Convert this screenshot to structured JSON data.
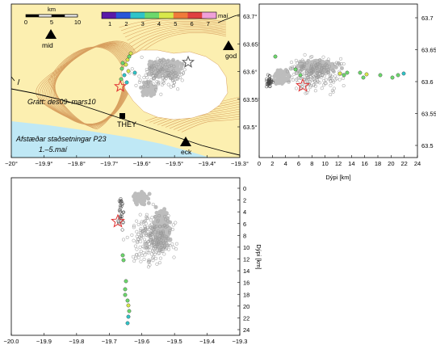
{
  "map": {
    "scale_label": "km",
    "scale_ticks": [
      "0",
      "5",
      "10"
    ],
    "colorbar_ticks": [
      "1",
      "2",
      "3",
      "4",
      "5",
      "6",
      "7"
    ],
    "colorbar_unit": "maí",
    "colorbar_colors": [
      "#5a1aa8",
      "#2856d8",
      "#2fc4c8",
      "#6cd86c",
      "#d8e84a",
      "#f07a3a",
      "#e04040",
      "#f0a0d8"
    ],
    "text_period": "Grátt: des09–mars10",
    "text_relocated": "Afstæðar staðsetningar P23",
    "text_dates": "1.–5.maí",
    "station_names": {
      "mid": "mid",
      "god": "god",
      "they": "THEY",
      "eck": "eck"
    },
    "x_ticks": [
      "−20°",
      "−19.9°",
      "−19.8°",
      "−19.7°",
      "−19.6°",
      "−19.5°",
      "−19.4°",
      "−19.3°"
    ],
    "y_ticks": [
      "63.5°",
      "63.55°",
      "63.6°",
      "63.65°",
      "63.7°"
    ],
    "colors": {
      "land": "#fcefb0",
      "sea": "#bfe8f5",
      "glacier": "#ffffff",
      "contour": "#d8a060",
      "gray_events": "#b8b8b8",
      "star": "#e03030"
    }
  },
  "depth_east": {
    "x_ticks": [
      "0",
      "2",
      "4",
      "6",
      "8",
      "10",
      "12",
      "14",
      "16",
      "18",
      "20",
      "22",
      "24"
    ],
    "x_label": "Dýpi [km]",
    "y_ticks": [
      "63.5",
      "63.55",
      "63.6",
      "63.65",
      "63.7"
    ]
  },
  "depth_lon": {
    "x_ticks": [
      "−20.0",
      "−19.9",
      "−19.8",
      "−19.7",
      "−19.6",
      "−19.5",
      "−19.4",
      "−19.3"
    ],
    "y_ticks": [
      "0",
      "2",
      "4",
      "6",
      "8",
      "10",
      "12",
      "14",
      "16",
      "18",
      "20",
      "22",
      "24"
    ],
    "y_label": "Dýpi [km]"
  }
}
